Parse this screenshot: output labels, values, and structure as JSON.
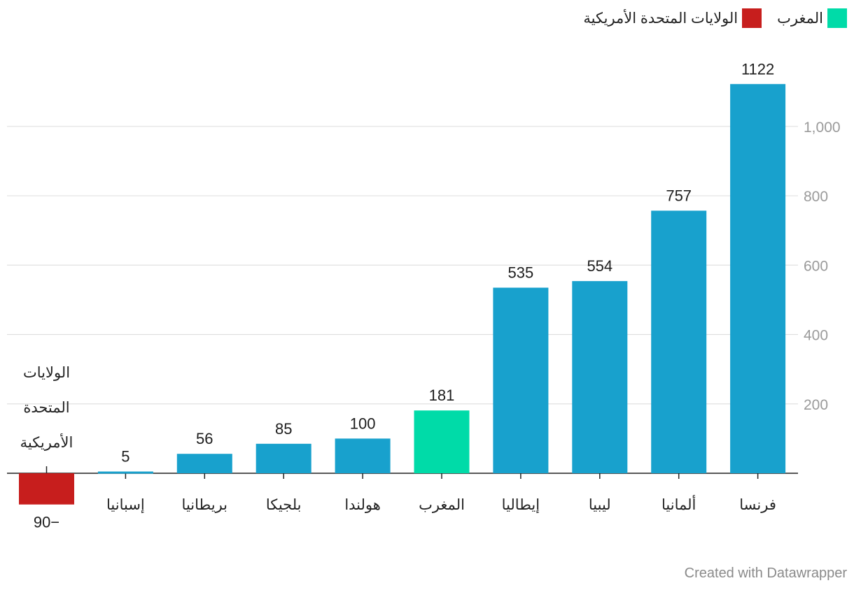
{
  "legend": [
    {
      "label": "المغرب",
      "color": "#00dba8"
    },
    {
      "label": "الولايات المتحدة الأمريكية",
      "color": "#c71e1d"
    }
  ],
  "credit": "Created with Datawrapper",
  "chart_data": {
    "type": "bar",
    "categories": [
      "الولايات المتحدة الأمريكية",
      "إسبانيا",
      "بريطانيا",
      "بلجيكا",
      "هولندا",
      "المغرب",
      "إيطاليا",
      "ليبيا",
      "ألمانيا",
      "فرنسا"
    ],
    "values": [
      -90,
      5,
      56,
      85,
      100,
      181,
      535,
      554,
      757,
      1122
    ],
    "value_labels": [
      "90−",
      "5",
      "56",
      "85",
      "100",
      "181",
      "535",
      "554",
      "757",
      "1122"
    ],
    "colors": [
      "#c71e1d",
      "#18a1cd",
      "#18a1cd",
      "#18a1cd",
      "#18a1cd",
      "#00dba8",
      "#18a1cd",
      "#18a1cd",
      "#18a1cd",
      "#18a1cd"
    ],
    "yticks": [
      200,
      400,
      600,
      800,
      1000
    ],
    "ytick_labels": [
      "200",
      "400",
      "600",
      "800",
      "1,000"
    ],
    "ylim": [
      -90,
      1122
    ],
    "grid": true,
    "legend_position": "top-right"
  }
}
